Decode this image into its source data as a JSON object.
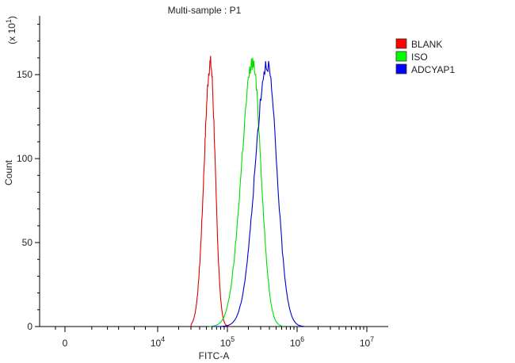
{
  "chart_data": {
    "type": "line",
    "title": "Multi-sample : P1",
    "xlabel": "FITC-A",
    "ylabel": "Count",
    "y_multiplier_label": "(x 10",
    "y_multiplier_exp": "1",
    "y_multiplier_close": ")",
    "x_scale": "biexponential",
    "xlim": [
      -1000,
      10000000
    ],
    "ylim": [
      0,
      185
    ],
    "y_ticks": [
      0,
      50,
      100,
      150
    ],
    "y_tick_labels": [
      "0",
      "50",
      "100",
      "150"
    ],
    "x_ticks": [
      {
        "value": 0,
        "base": "0",
        "exp": ""
      },
      {
        "value": 10000,
        "base": "10",
        "exp": "4"
      },
      {
        "value": 100000,
        "base": "10",
        "exp": "5"
      },
      {
        "value": 1000000,
        "base": "10",
        "exp": "6"
      },
      {
        "value": 10000000,
        "base": "10",
        "exp": "7"
      }
    ],
    "grid": false,
    "legend_position": "top-right",
    "series": [
      {
        "name": "BLANK",
        "color": "#e00000",
        "legend_color": "#ff0000",
        "peak_x": 57000,
        "peak_y": 157,
        "spread_left": 0.09,
        "spread_right": 0.07,
        "x_min": 30000,
        "x_max": 110000
      },
      {
        "name": "ISO",
        "color": "#00dd00",
        "legend_color": "#00ff00",
        "peak_x": 230000,
        "peak_y": 157,
        "spread_left": 0.16,
        "spread_right": 0.12,
        "x_min": 55000,
        "x_max": 620000
      },
      {
        "name": "ADCYAP1",
        "color": "#0000cc",
        "legend_color": "#0000ff",
        "peak_x": 370000,
        "peak_y": 157,
        "spread_left": 0.17,
        "spread_right": 0.14,
        "x_min": 60000,
        "x_max": 1250000
      }
    ]
  }
}
